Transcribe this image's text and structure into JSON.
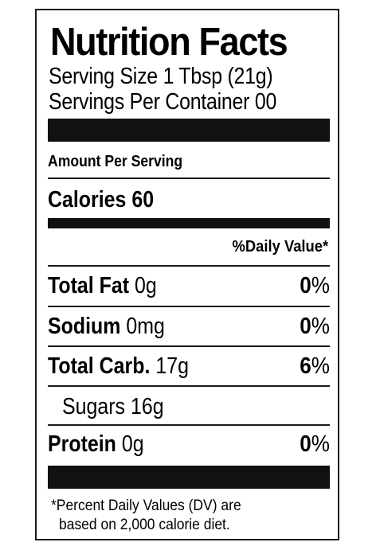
{
  "label": {
    "title": "Nutrition Facts",
    "serving_size": "Serving Size 1 Tbsp (21g)",
    "servings_per_container": "Servings Per Container 00",
    "amount_per_serving": "Amount Per Serving",
    "calories": "Calories 60",
    "daily_value_header": "%Daily Value*",
    "nutrients": [
      {
        "name": "Total Fat",
        "amount": "0g",
        "dv_number": "0",
        "dv_sign": "%"
      },
      {
        "name": "Sodium",
        "amount": "0mg",
        "dv_number": "0",
        "dv_sign": "%"
      },
      {
        "name": "Total Carb.",
        "amount": "17g",
        "dv_number": "6",
        "dv_sign": "%"
      },
      {
        "name": "Sugars",
        "amount": "16g",
        "dv_number": "",
        "dv_sign": ""
      },
      {
        "name": "Protein",
        "amount": "0g",
        "dv_number": "0",
        "dv_sign": "%"
      }
    ],
    "footnote_line1": "*Percent Daily Values (DV) are",
    "footnote_line2": "based on 2,000 calorie diet."
  }
}
